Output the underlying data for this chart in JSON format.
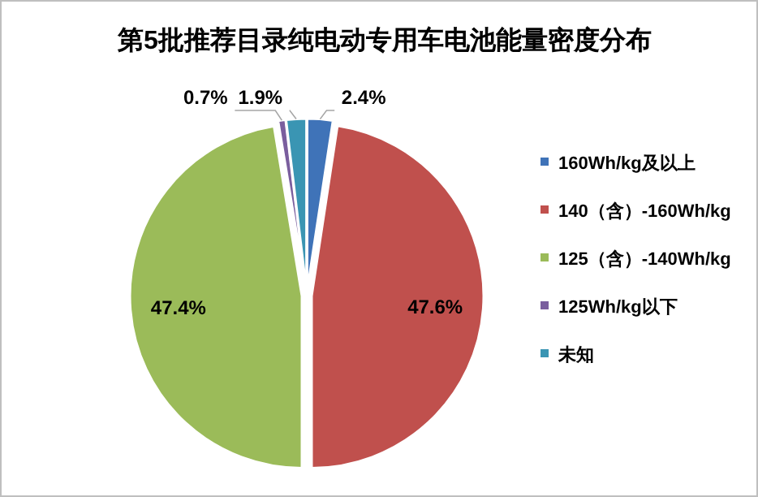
{
  "chart_data": {
    "type": "pie",
    "title": "第5批推荐目录纯电动专用车电池能量密度分布",
    "categories": [
      "160Wh/kg及以上",
      "140（含）-160Wh/kg",
      "125（含）-140Wh/kg",
      "125Wh/kg以下",
      "未知"
    ],
    "values": [
      2.4,
      47.6,
      47.4,
      0.7,
      1.9
    ],
    "colors": [
      "#3f73b8",
      "#c0504d",
      "#9bbb59",
      "#7a5e9e",
      "#3a95b3"
    ],
    "value_labels": [
      "2.4%",
      "47.6%",
      "47.4%",
      "0.7%",
      "1.9%"
    ],
    "legend": "right"
  }
}
